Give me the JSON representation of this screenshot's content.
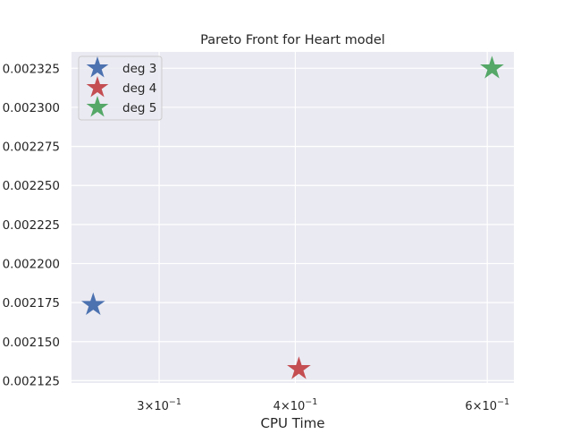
{
  "chart_data": {
    "type": "scatter",
    "title": "Pareto Front for Heart model",
    "xlabel": "CPU Time",
    "ylabel": "",
    "x_scale": "log",
    "xlim": [
      0.2493,
      0.6347
    ],
    "ylim": [
      0.0021235,
      0.0023355
    ],
    "x_ticks": [
      {
        "value": 0.3,
        "base": "3",
        "exponent": "-1",
        "label": "3×10^-1"
      },
      {
        "value": 0.4,
        "base": "4",
        "exponent": "-1",
        "label": "4×10^-1"
      },
      {
        "value": 0.6,
        "base": "6",
        "exponent": "-1",
        "label": "6×10^-1"
      }
    ],
    "y_ticks": [
      {
        "value": 0.002125,
        "label": "0.002125"
      },
      {
        "value": 0.00215,
        "label": "0.002150"
      },
      {
        "value": 0.002175,
        "label": "0.002175"
      },
      {
        "value": 0.0022,
        "label": "0.002200"
      },
      {
        "value": 0.002225,
        "label": "0.002225"
      },
      {
        "value": 0.00225,
        "label": "0.002250"
      },
      {
        "value": 0.002275,
        "label": "0.002275"
      },
      {
        "value": 0.0023,
        "label": "0.002300"
      },
      {
        "value": 0.002325,
        "label": "0.002325"
      }
    ],
    "grid": true,
    "legend_position": "top-left",
    "marker": "star",
    "series": [
      {
        "name": "deg 3",
        "color": "#4c72b0",
        "x": [
          0.261
        ],
        "y": [
          0.0021735
        ]
      },
      {
        "name": "deg 4",
        "color": "#c44e52",
        "x": [
          0.403
        ],
        "y": [
          0.0021325
        ]
      },
      {
        "name": "deg 5",
        "color": "#55a868",
        "x": [
          0.606
        ],
        "y": [
          0.002325
        ]
      }
    ]
  }
}
